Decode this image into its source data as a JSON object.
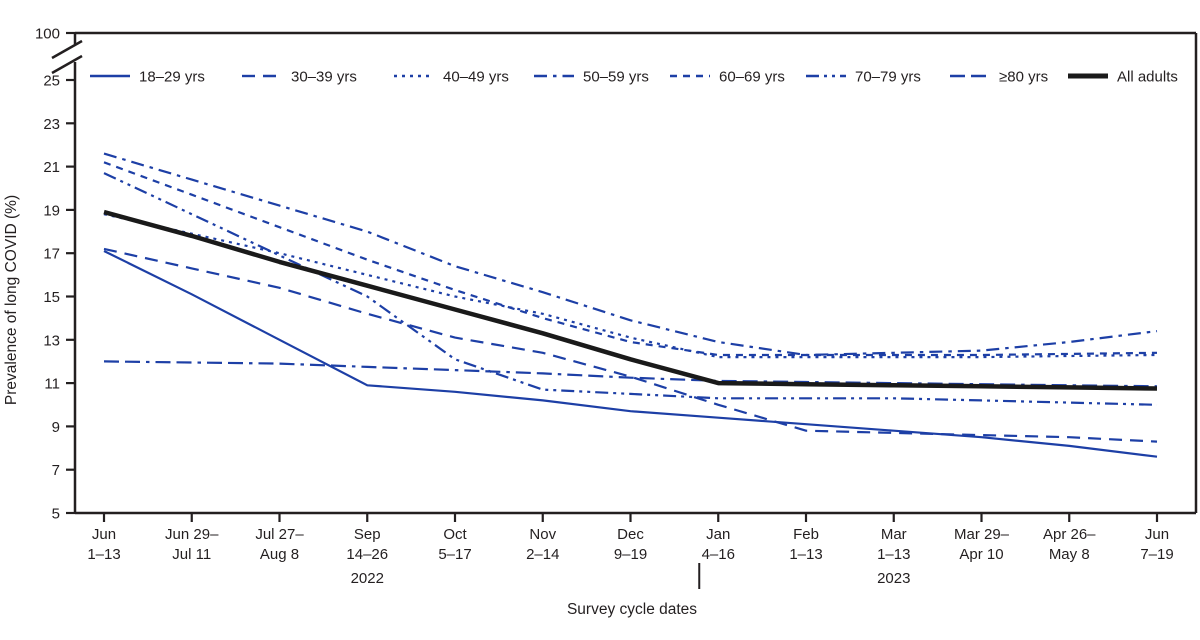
{
  "chart_data": {
    "type": "line",
    "title": "",
    "x_label": "Survey cycle dates",
    "y_label": "Prevalence of long COVID (%)",
    "ylim": [
      5,
      25
    ],
    "y_ticks": [
      5,
      7,
      9,
      11,
      13,
      15,
      17,
      19,
      21,
      23,
      25
    ],
    "y_axis_break_top_label": "100",
    "grid": "off",
    "legend_position": "top-inside",
    "colors": {
      "series_blue": "#1d3fa6",
      "series_black": "#1a1a1a",
      "text": "#231f20"
    },
    "categories": [
      "Jun 1–13",
      "Jun 29–Jul 11",
      "Jul 27–Aug 8",
      "Sep 14–26",
      "Oct 5–17",
      "Nov 2–14",
      "Dec 9–19",
      "Jan 4–16",
      "Feb 1–13",
      "Mar 1–13",
      "Mar 29–Apr 10",
      "Apr 26–May 8",
      "Jun 7–19"
    ],
    "categories_two_line": [
      [
        "Jun",
        "1–13"
      ],
      [
        "Jun 29–",
        "Jul 11"
      ],
      [
        "Jul 27–",
        "Aug 8"
      ],
      [
        "Sep",
        "14–26"
      ],
      [
        "Oct",
        "5–17"
      ],
      [
        "Nov",
        "2–14"
      ],
      [
        "Dec",
        "9–19"
      ],
      [
        "Jan",
        "4–16"
      ],
      [
        "Feb",
        "1–13"
      ],
      [
        "Mar",
        "1–13"
      ],
      [
        "Mar 29–",
        "Apr 10"
      ],
      [
        "Apr 26–",
        "May 8"
      ],
      [
        "Jun",
        "7–19"
      ]
    ],
    "year_labels": [
      {
        "text": "2022",
        "tick_index": 3
      },
      {
        "text": "2023",
        "tick_index": 9
      }
    ],
    "year_divider_tick_index": 7,
    "series": [
      {
        "key": "18-29",
        "name": "18–29 yrs",
        "dash": "solid",
        "color": "#1d3fa6",
        "width": 2.2,
        "values": [
          17.1,
          15.1,
          13.0,
          10.9,
          10.6,
          10.2,
          9.7,
          9.4,
          9.1,
          8.8,
          8.5,
          8.1,
          7.6
        ]
      },
      {
        "key": "30-39",
        "name": "30–39 yrs",
        "dash": "longdash",
        "color": "#1d3fa6",
        "width": 2.2,
        "values": [
          17.2,
          16.3,
          15.4,
          14.2,
          13.1,
          12.4,
          11.3,
          10.0,
          8.8,
          8.7,
          8.6,
          8.5,
          8.3
        ]
      },
      {
        "key": "40-49",
        "name": "40–49 yrs",
        "dash": "dotted",
        "color": "#1d3fa6",
        "width": 2.2,
        "values": [
          18.8,
          17.9,
          17.0,
          16.0,
          15.0,
          14.2,
          13.1,
          12.2,
          12.2,
          12.2,
          12.2,
          12.25,
          12.3
        ]
      },
      {
        "key": "50-59",
        "name": "50–59 yrs",
        "dash": "dashdot",
        "color": "#1d3fa6",
        "width": 2.2,
        "values": [
          21.6,
          20.4,
          19.2,
          18.0,
          16.4,
          15.2,
          13.9,
          12.9,
          12.3,
          12.4,
          12.5,
          12.9,
          13.4
        ]
      },
      {
        "key": "60-69",
        "name": "60–69 yrs",
        "dash": "shortdash",
        "color": "#1d3fa6",
        "width": 2.2,
        "values": [
          21.2,
          19.7,
          18.2,
          16.7,
          15.3,
          14.0,
          12.9,
          12.3,
          12.3,
          12.3,
          12.3,
          12.35,
          12.4
        ]
      },
      {
        "key": "70-79",
        "name": "70–79 yrs",
        "dash": "dashdotdot",
        "color": "#1d3fa6",
        "width": 2.2,
        "values": [
          20.7,
          18.8,
          16.9,
          15.0,
          12.1,
          10.7,
          10.5,
          10.3,
          10.3,
          10.3,
          10.2,
          10.1,
          10.0
        ]
      },
      {
        "key": "80-plus",
        "name": "≥80 yrs",
        "dash": "dashdashdot",
        "color": "#1d3fa6",
        "width": 2.2,
        "values": [
          12.0,
          11.95,
          11.9,
          11.75,
          11.6,
          11.45,
          11.25,
          11.1,
          11.05,
          11.0,
          10.95,
          10.9,
          10.85
        ]
      },
      {
        "key": "all-adults",
        "name": "All adults",
        "dash": "solid",
        "color": "#1a1a1a",
        "width": 4.5,
        "values": [
          18.9,
          17.8,
          16.6,
          15.5,
          14.4,
          13.3,
          12.1,
          11.0,
          10.95,
          10.9,
          10.85,
          10.8,
          10.75
        ]
      }
    ]
  }
}
